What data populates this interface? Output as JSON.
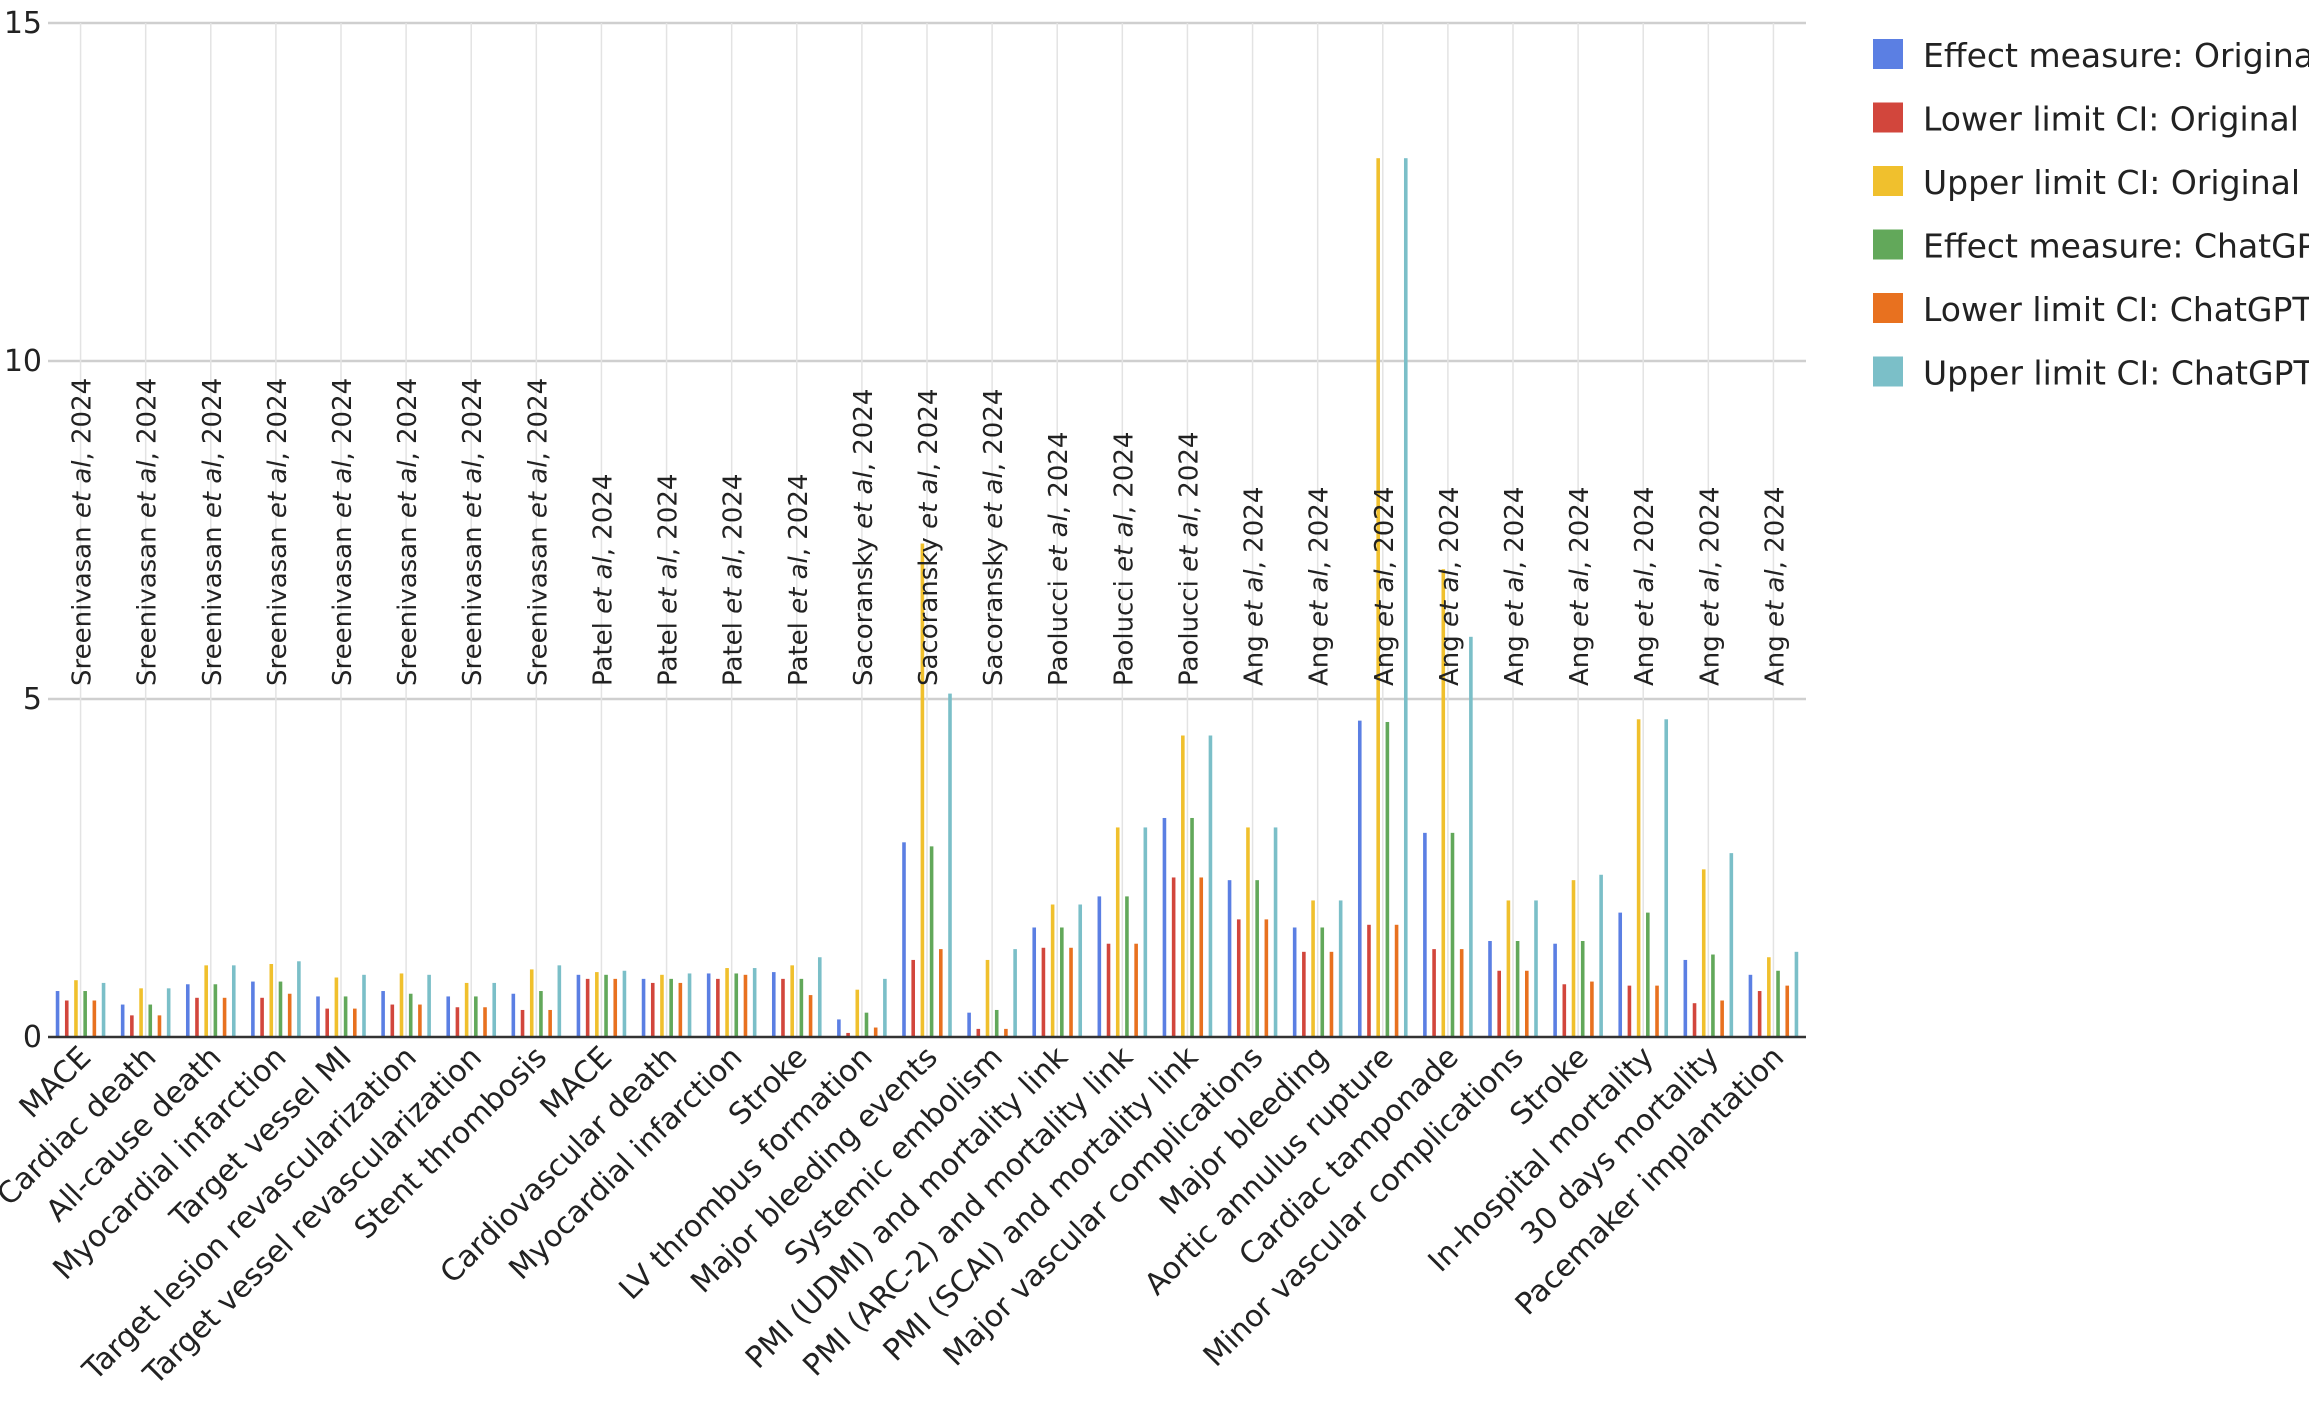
{
  "chart_data": {
    "type": "bar",
    "ylim": [
      0,
      15
    ],
    "yticks": [
      0,
      5,
      10,
      15
    ],
    "grid": true,
    "legend_position": "right",
    "categories": [
      "MACE",
      "Cardiac death",
      "All-cause death",
      "Myocardial infarction",
      "Target vessel MI",
      "Target lesion revascularization",
      "Target vessel revascularization",
      "Stent thrombosis",
      "MACE",
      "Cardiovascular death",
      "Myocardial infarction",
      "Stroke",
      "LV thrombus formation",
      "Major bleeding events",
      "Systemic embolism",
      "PMI (UDMI) and mortality link",
      "PMI (ARC-2) and mortality link",
      "PMI (SCAI) and mortality link",
      "Major vascular complications",
      "Major bleeding",
      "Aortic annulus rupture",
      "Cardiac tamponade",
      "Minor vascular complications",
      "Stroke",
      "In-hospital mortality",
      "30 days mortality",
      "Pacemaker implantation"
    ],
    "study_labels": [
      {
        "author": "Sreenivasan",
        "etal": "et al",
        "year": ", 2024"
      },
      {
        "author": "Sreenivasan",
        "etal": "et al",
        "year": ", 2024"
      },
      {
        "author": "Sreenivasan",
        "etal": "et al",
        "year": ", 2024"
      },
      {
        "author": "Sreenivasan",
        "etal": "et al",
        "year": ", 2024"
      },
      {
        "author": "Sreenivasan",
        "etal": "et al",
        "year": ", 2024"
      },
      {
        "author": "Sreenivasan",
        "etal": "et al",
        "year": ", 2024"
      },
      {
        "author": "Sreenivasan",
        "etal": "et al",
        "year": ", 2024"
      },
      {
        "author": "Sreenivasan",
        "etal": "et al",
        "year": ", 2024"
      },
      {
        "author": "Patel",
        "etal": "et al",
        "year": ", 2024"
      },
      {
        "author": "Patel",
        "etal": "et al",
        "year": ", 2024"
      },
      {
        "author": "Patel",
        "etal": "et al",
        "year": ", 2024"
      },
      {
        "author": "Patel",
        "etal": "et al",
        "year": ", 2024"
      },
      {
        "author": "Sacoransky",
        "etal": "et al",
        "year": ", 2024"
      },
      {
        "author": "Sacoransky",
        "etal": "et al",
        "year": ", 2024"
      },
      {
        "author": "Sacoransky",
        "etal": "et al",
        "year": ", 2024"
      },
      {
        "author": "Paolucci",
        "etal": "et al",
        "year": ", 2024"
      },
      {
        "author": "Paolucci",
        "etal": "et al",
        "year": ", 2024"
      },
      {
        "author": "Paolucci",
        "etal": "et al",
        "year": ", 2024"
      },
      {
        "author": "Ang",
        "etal": "et al",
        "year": ", 2024"
      },
      {
        "author": "Ang",
        "etal": "et al",
        "year": ", 2024"
      },
      {
        "author": "Ang",
        "etal": "et al",
        "year": ", 2024"
      },
      {
        "author": "Ang",
        "etal": "et al",
        "year": ", 2024"
      },
      {
        "author": "Ang",
        "etal": "et al",
        "year": ", 2024"
      },
      {
        "author": "Ang",
        "etal": "et al",
        "year": ", 2024"
      },
      {
        "author": "Ang",
        "etal": "et al",
        "year": ", 2024"
      },
      {
        "author": "Ang",
        "etal": "et al",
        "year": ", 2024"
      },
      {
        "author": "Ang",
        "etal": "et al",
        "year": ", 2024"
      }
    ],
    "series": [
      {
        "name": "Effect measure: Original",
        "color": "#5b7fe3",
        "values": [
          0.68,
          0.48,
          0.78,
          0.82,
          0.6,
          0.68,
          0.6,
          0.64,
          0.92,
          0.86,
          0.94,
          0.96,
          0.26,
          2.88,
          0.36,
          1.62,
          2.08,
          3.24,
          2.32,
          1.62,
          4.68,
          3.02,
          1.42,
          1.38,
          1.84,
          1.14,
          0.92
        ]
      },
      {
        "name": "Lower limit CI: Original",
        "color": "#d2463c",
        "values": [
          0.54,
          0.32,
          0.58,
          0.58,
          0.42,
          0.48,
          0.44,
          0.4,
          0.86,
          0.8,
          0.86,
          0.86,
          0.06,
          1.14,
          0.12,
          1.32,
          1.38,
          2.36,
          1.74,
          1.26,
          1.66,
          1.3,
          0.98,
          0.78,
          0.76,
          0.5,
          0.68
        ]
      },
      {
        "name": "Upper limit CI: Original",
        "color": "#f0c02d",
        "values": [
          0.84,
          0.72,
          1.06,
          1.08,
          0.88,
          0.94,
          0.8,
          1.0,
          0.96,
          0.92,
          1.02,
          1.06,
          0.7,
          7.3,
          1.14,
          1.96,
          3.1,
          4.46,
          3.1,
          2.02,
          13.0,
          6.92,
          2.02,
          2.32,
          4.7,
          2.48,
          1.18
        ]
      },
      {
        "name": "Effect measure: ChatGPT",
        "color": "#62a85a",
        "values": [
          0.68,
          0.48,
          0.78,
          0.82,
          0.6,
          0.64,
          0.6,
          0.68,
          0.92,
          0.86,
          0.94,
          0.86,
          0.36,
          2.82,
          0.4,
          1.62,
          2.08,
          3.24,
          2.32,
          1.62,
          4.66,
          3.02,
          1.42,
          1.42,
          1.84,
          1.22,
          0.98
        ]
      },
      {
        "name": "Lower limit CI: ChatGPT",
        "color": "#e8711f",
        "values": [
          0.54,
          0.32,
          0.58,
          0.64,
          0.42,
          0.48,
          0.44,
          0.4,
          0.86,
          0.8,
          0.92,
          0.62,
          0.14,
          1.3,
          0.12,
          1.32,
          1.38,
          2.36,
          1.74,
          1.26,
          1.66,
          1.3,
          0.98,
          0.82,
          0.76,
          0.54,
          0.76
        ]
      },
      {
        "name": "Upper limit CI: ChatGPT",
        "color": "#7bbfc8",
        "values": [
          0.8,
          0.72,
          1.06,
          1.12,
          0.92,
          0.92,
          0.8,
          1.06,
          0.98,
          0.94,
          1.02,
          1.18,
          0.86,
          5.08,
          1.3,
          1.96,
          3.1,
          4.46,
          3.1,
          2.02,
          13.0,
          5.92,
          2.02,
          2.4,
          4.7,
          2.72,
          1.26
        ]
      }
    ]
  }
}
